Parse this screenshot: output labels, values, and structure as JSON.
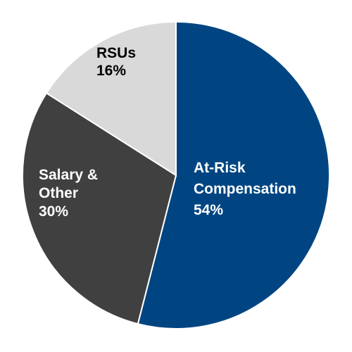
{
  "chart_data": {
    "type": "pie",
    "start": "12 o'clock",
    "direction": "clockwise",
    "slices": [
      {
        "lines": [
          "At-Risk",
          "Compensation",
          "54%"
        ],
        "value": 54,
        "color": "#004581",
        "text_color": "#ffffff"
      },
      {
        "lines": [
          "Salary &",
          "Other",
          "30%"
        ],
        "value": 30,
        "color": "#404040",
        "text_color": "#ffffff"
      },
      {
        "lines": [
          "RSUs",
          "16%"
        ],
        "value": 16,
        "color": "#d9d9d9",
        "text_color": "#000000"
      }
    ]
  }
}
